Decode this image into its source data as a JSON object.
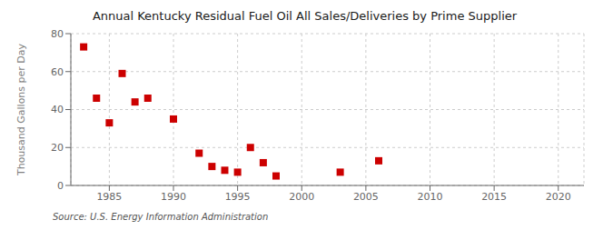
{
  "chart_data": {
    "type": "scatter",
    "title": "Annual Kentucky Residual Fuel Oil All Sales/Deliveries by Prime Supplier",
    "ylabel": "Thousand Gallons per Day",
    "annotations": [
      "Source: U.S. Energy Information Administration"
    ],
    "x": [
      1983,
      1984,
      1985,
      1986,
      1987,
      1988,
      1990,
      1992,
      1993,
      1994,
      1995,
      1996,
      1997,
      1998,
      2003,
      2006
    ],
    "values": [
      73,
      46,
      33,
      59,
      44,
      46,
      35,
      17,
      10,
      8,
      7,
      20,
      12,
      5,
      7,
      13
    ],
    "color": "#cc0000",
    "marker": "square",
    "xlim": [
      1982,
      2022
    ],
    "ylim": [
      0,
      80
    ],
    "xticks": [
      1985,
      1990,
      1995,
      2000,
      2005,
      2010,
      2015,
      2020
    ],
    "yticks": [
      0,
      20,
      40,
      60,
      80
    ],
    "grid": true
  }
}
